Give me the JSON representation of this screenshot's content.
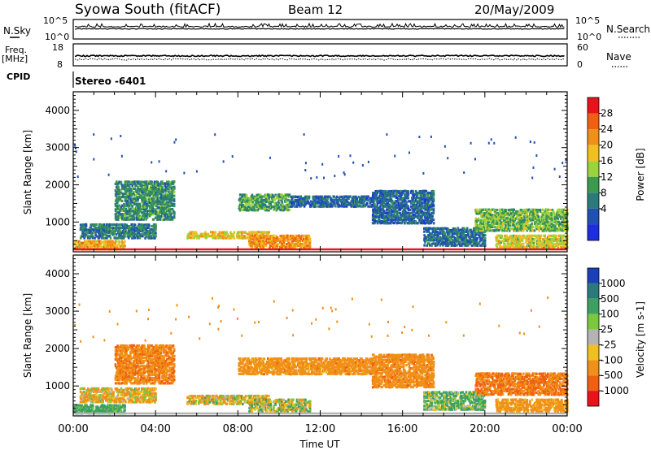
{
  "header": {
    "title": "Syowa South (fitACF)",
    "beam": "Beam 12",
    "date": "20/May/2009"
  },
  "noise_panel": {
    "left_label": "N.Sky",
    "right_label": "N.Search",
    "left_ticks": [
      "10^5",
      "10^0"
    ],
    "right_ticks": [
      "10^5",
      "10^0"
    ]
  },
  "freq_panel": {
    "left_label_1": "Freq.",
    "left_label_2": "[MHz]",
    "right_label": "Nave",
    "left_ticks": [
      "18",
      "8"
    ],
    "right_ticks": [
      "60",
      "0"
    ]
  },
  "cpid": {
    "label": "CPID",
    "value": "Stereo -6401"
  },
  "x_axis": {
    "label": "Time UT",
    "ticks": [
      "00:00",
      "04:00",
      "08:00",
      "12:00",
      "16:00",
      "20:00",
      "00:00"
    ]
  },
  "chart_data": [
    {
      "type": "heatmap",
      "name": "power",
      "ylabel": "Slant Range [km]",
      "yticks": [
        "1000",
        "2000",
        "3000",
        "4000"
      ],
      "ylim": [
        200,
        4500
      ],
      "xlim": [
        0,
        24
      ],
      "colorbar_label": "Power [dB]",
      "colorbar_ticks": [
        "28",
        "24",
        "20",
        "16",
        "12",
        "8",
        "4"
      ],
      "colorbar_colors": [
        "#e8131b",
        "#f06010",
        "#f09018",
        "#f0c020",
        "#9cd23c",
        "#3c9a50",
        "#2a7a7a",
        "#2050b4",
        "#1c2ee0"
      ],
      "regions": [
        {
          "t": [
            2.0,
            4.9
          ],
          "r": [
            1100,
            2150
          ],
          "level": 10
        },
        {
          "t": [
            0.3,
            4.0
          ],
          "r": [
            600,
            1000
          ],
          "level": 8
        },
        {
          "t": [
            0.0,
            2.5
          ],
          "r": [
            300,
            550
          ],
          "level": 22
        },
        {
          "t": [
            5.5,
            9.5
          ],
          "r": [
            600,
            800
          ],
          "level": 20
        },
        {
          "t": [
            8.0,
            10.5
          ],
          "r": [
            1350,
            1800
          ],
          "level": 12
        },
        {
          "t": [
            10.5,
            14.5
          ],
          "r": [
            1450,
            1750
          ],
          "level": 6
        },
        {
          "t": [
            8.5,
            11.5
          ],
          "r": [
            350,
            700
          ],
          "level": 24
        },
        {
          "t": [
            14.5,
            17.5
          ],
          "r": [
            1000,
            1900
          ],
          "level": 6
        },
        {
          "t": [
            17.0,
            20.0
          ],
          "r": [
            400,
            900
          ],
          "level": 7
        },
        {
          "t": [
            19.5,
            24.0
          ],
          "r": [
            800,
            1400
          ],
          "level": 14
        },
        {
          "t": [
            20.5,
            24.0
          ],
          "r": [
            350,
            700
          ],
          "level": 18
        }
      ]
    },
    {
      "type": "heatmap",
      "name": "velocity",
      "ylabel": "Slant Range [km]",
      "yticks": [
        "1000",
        "2000",
        "3000",
        "4000"
      ],
      "ylim": [
        200,
        4500
      ],
      "xlim": [
        0,
        24
      ],
      "colorbar_label": "Velocity [m s-1]",
      "colorbar_ticks": [
        "1000",
        "500",
        "100",
        "25",
        "-25",
        "-100",
        "-500",
        "-1000"
      ],
      "colorbar_colors": [
        "#1a3fb8",
        "#2a7a7a",
        "#3ca060",
        "#7cc83c",
        "#b4b4b4",
        "#f0c020",
        "#f09018",
        "#f06010",
        "#e8131b"
      ],
      "regions": [
        {
          "t": [
            2.0,
            4.9
          ],
          "r": [
            1100,
            2150
          ],
          "v": -250
        },
        {
          "t": [
            0.3,
            4.0
          ],
          "r": [
            600,
            1000
          ],
          "v": -60
        },
        {
          "t": [
            0.0,
            2.5
          ],
          "r": [
            300,
            550
          ],
          "v": 150
        },
        {
          "t": [
            5.5,
            9.5
          ],
          "r": [
            550,
            800
          ],
          "v": -40
        },
        {
          "t": [
            8.0,
            14.5
          ],
          "r": [
            1350,
            1800
          ],
          "v": -180
        },
        {
          "t": [
            8.5,
            11.5
          ],
          "r": [
            350,
            700
          ],
          "v": 0
        },
        {
          "t": [
            14.5,
            17.5
          ],
          "r": [
            1000,
            1900
          ],
          "v": -200
        },
        {
          "t": [
            17.0,
            20.0
          ],
          "r": [
            400,
            900
          ],
          "v": 80
        },
        {
          "t": [
            19.5,
            24.0
          ],
          "r": [
            800,
            1400
          ],
          "v": -300
        },
        {
          "t": [
            20.5,
            24.0
          ],
          "r": [
            350,
            700
          ],
          "v": -150
        }
      ]
    }
  ]
}
